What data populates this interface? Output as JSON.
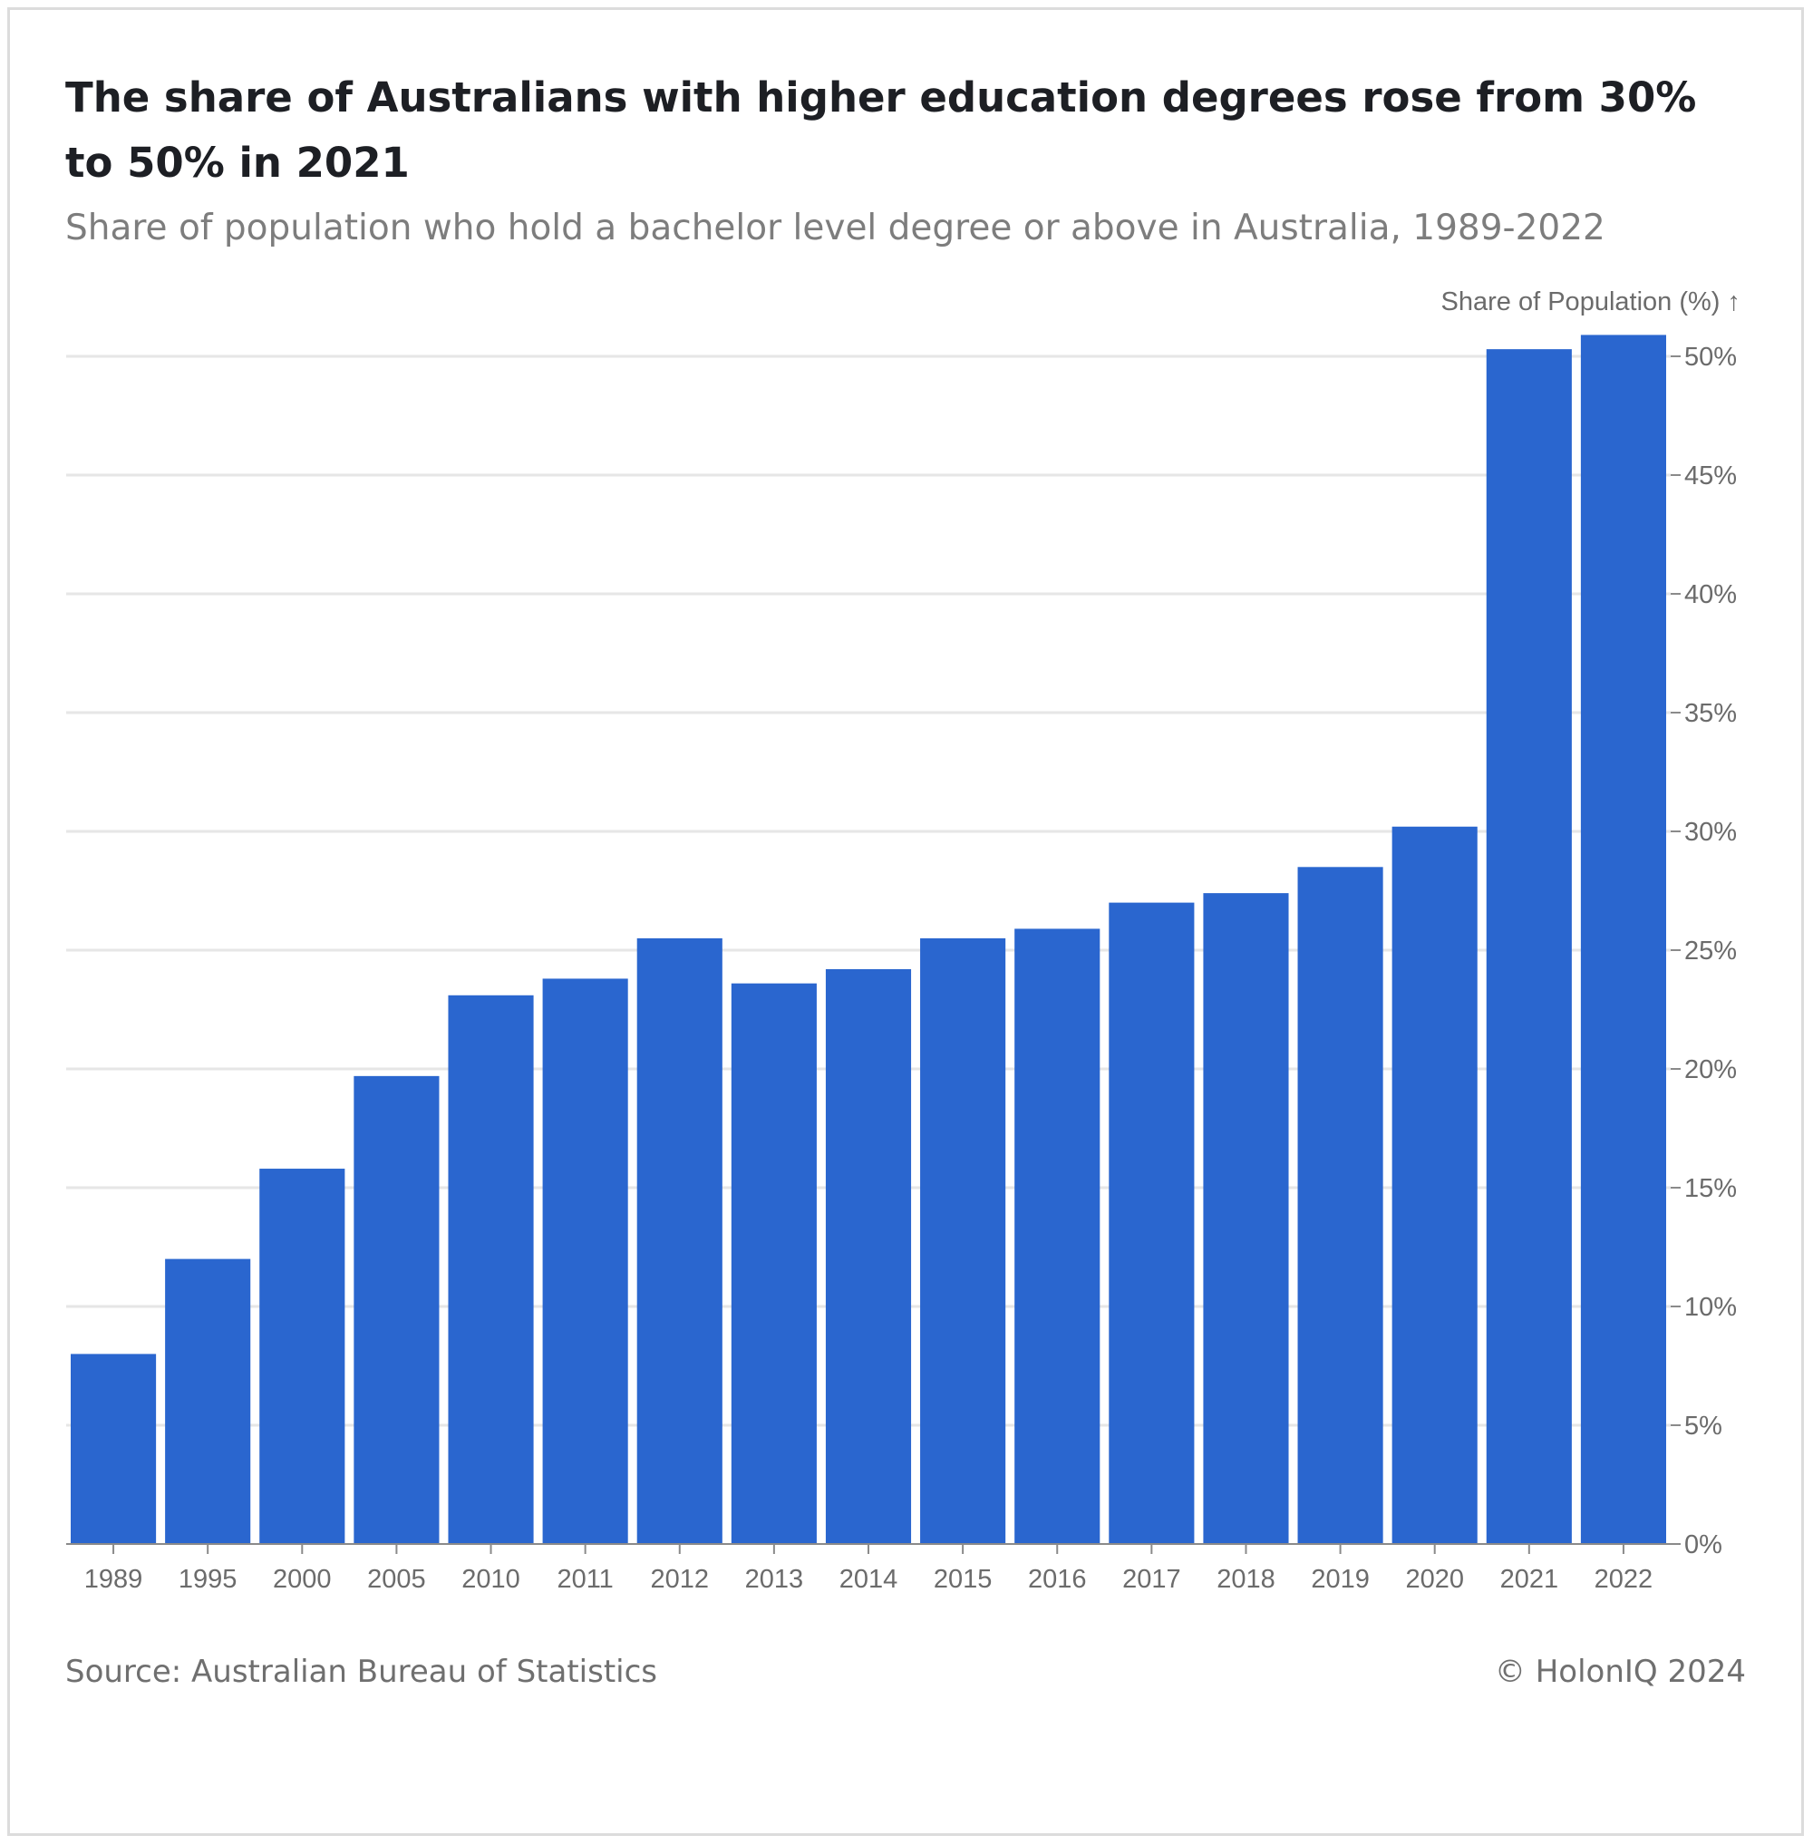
{
  "title": "The share of Australians with higher education degrees rose from 30% to 50% in 2021",
  "subtitle": "Share of population who hold a bachelor level degree or above in Australia, 1989-2022",
  "source": "Source: Australian Bureau of Statistics",
  "copyright": "© HolonIQ 2024",
  "colors": {
    "bar": "#2a66cf",
    "grid": "#e6e6e6",
    "axis_text": "#6b6b6b",
    "background": "#ffffff"
  },
  "chart_data": {
    "type": "bar",
    "title": "The share of Australians with higher education degrees rose from 30% to 50% in 2021",
    "subtitle": "Share of population who hold a bachelor level degree or above in Australia, 1989-2022",
    "xlabel": "",
    "ylabel": "Share of Population (%) ↑",
    "categories": [
      "1989",
      "1995",
      "2000",
      "2005",
      "2010",
      "2011",
      "2012",
      "2013",
      "2014",
      "2015",
      "2016",
      "2017",
      "2018",
      "2019",
      "2020",
      "2021",
      "2022"
    ],
    "values": [
      8.0,
      12.0,
      15.8,
      19.7,
      23.1,
      23.8,
      25.5,
      23.6,
      24.2,
      25.5,
      25.9,
      27.0,
      27.4,
      28.5,
      30.2,
      50.3,
      50.9
    ],
    "ylim": [
      0,
      51
    ],
    "yticks": [
      0,
      5,
      10,
      15,
      20,
      25,
      30,
      35,
      40,
      45,
      50
    ],
    "ytick_labels": [
      "0%",
      "5%",
      "10%",
      "15%",
      "20%",
      "25%",
      "30%",
      "35%",
      "40%",
      "45%",
      "50%"
    ],
    "y_axis_position": "right",
    "grid": true,
    "legend": "none"
  }
}
